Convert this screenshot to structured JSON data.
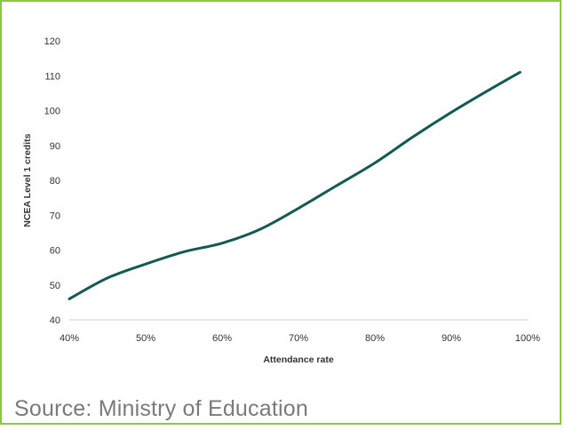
{
  "chart_data": {
    "type": "line",
    "xlabel": "Attendance rate",
    "ylabel": "NCEA Level 1 credits",
    "x_ticks": [
      "40%",
      "50%",
      "60%",
      "70%",
      "80%",
      "90%",
      "100%"
    ],
    "y_ticks": [
      "40",
      "50",
      "60",
      "70",
      "80",
      "90",
      "100",
      "110",
      "120"
    ],
    "xlim": [
      40,
      100
    ],
    "ylim": [
      40,
      120
    ],
    "grid": false,
    "series": [
      {
        "color": "#145a54",
        "x": [
          40,
          45,
          50,
          55,
          60,
          65,
          70,
          75,
          80,
          85,
          90,
          95,
          99
        ],
        "y": [
          46,
          52,
          56,
          59.5,
          62,
          66,
          72,
          78.5,
          85,
          92.5,
          99.5,
          106,
          111
        ]
      }
    ]
  },
  "source": "Source: Ministry of Education"
}
